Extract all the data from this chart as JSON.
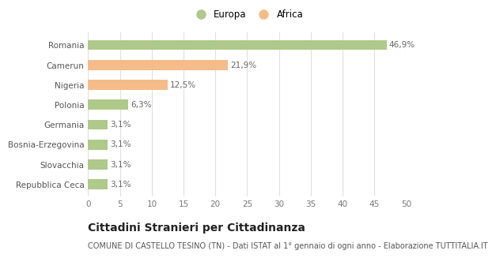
{
  "categories": [
    "Romania",
    "Camerun",
    "Nigeria",
    "Polonia",
    "Germania",
    "Bosnia-Erzegovina",
    "Slovacchia",
    "Repubblica Ceca"
  ],
  "values": [
    46.9,
    21.9,
    12.5,
    6.3,
    3.1,
    3.1,
    3.1,
    3.1
  ],
  "labels": [
    "46,9%",
    "21,9%",
    "12,5%",
    "6,3%",
    "3,1%",
    "3,1%",
    "3,1%",
    "3,1%"
  ],
  "colors": [
    "#aec98a",
    "#f5bc8a",
    "#f5bc8a",
    "#aec98a",
    "#aec98a",
    "#aec98a",
    "#aec98a",
    "#aec98a"
  ],
  "legend": [
    {
      "label": "Europa",
      "color": "#aec98a"
    },
    {
      "label": "Africa",
      "color": "#f5bc8a"
    }
  ],
  "xlim": [
    0,
    50
  ],
  "xticks": [
    0,
    5,
    10,
    15,
    20,
    25,
    30,
    35,
    40,
    45,
    50
  ],
  "title": "Cittadini Stranieri per Cittadinanza",
  "subtitle": "COMUNE DI CASTELLO TESINO (TN) - Dati ISTAT al 1° gennaio di ogni anno - Elaborazione TUTTITALIA.IT",
  "background_color": "#ffffff",
  "grid_color": "#e0e0e0",
  "bar_height": 0.5,
  "title_fontsize": 10,
  "subtitle_fontsize": 7,
  "label_fontsize": 7.5,
  "tick_fontsize": 7.5,
  "legend_fontsize": 8.5
}
